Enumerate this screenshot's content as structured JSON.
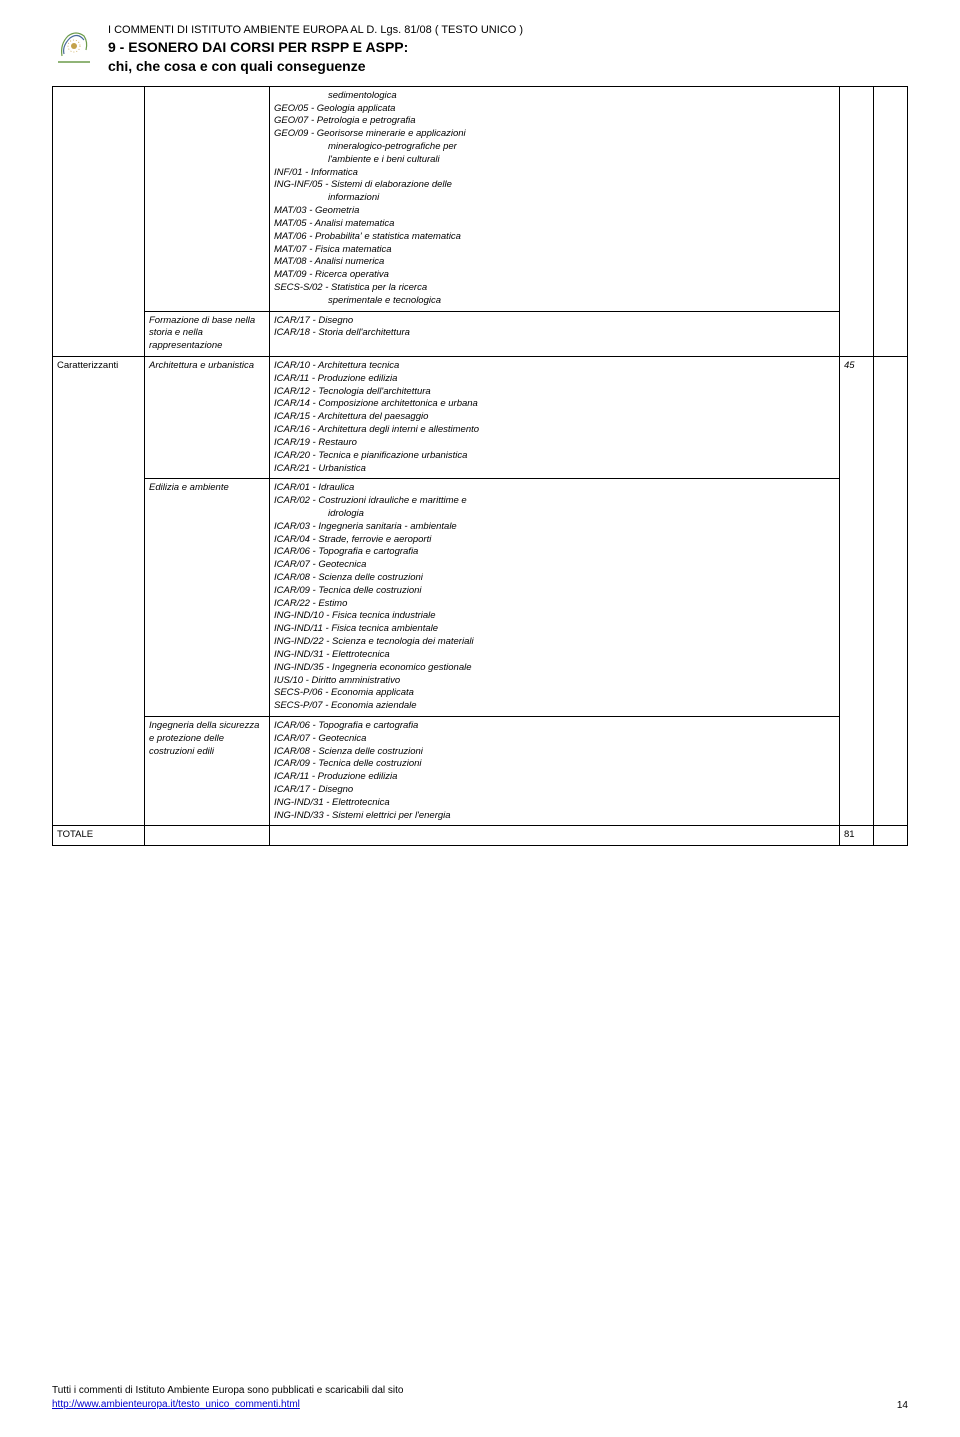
{
  "header": {
    "line1": "I COMMENTI DI ISTITUTO AMBIENTE EUROPA AL D. Lgs. 81/08 ( TESTO UNICO )",
    "line2": "9 - ESONERO DAI CORSI PER RSPP E ASPP:",
    "line3": "chi, che cosa e con quali conseguenze"
  },
  "rows": {
    "r1": {
      "col2": "",
      "col3_pre": "sedimentologica",
      "col3_lines": [
        "GEO/05 - Geologia applicata",
        "GEO/07 - Petrologia e petrografia",
        "GEO/09 - Georisorse minerarie e applicazioni"
      ],
      "col3_indent1": "mineralogico-petrografiche per",
      "col3_indent2": "l'ambiente e i beni culturali",
      "col3_lines_b": [
        "INF/01 - Informatica",
        "ING-INF/05 - Sistemi di elaborazione delle"
      ],
      "col3_indent3": "informazioni",
      "col3_lines_c": [
        "MAT/03 - Geometria",
        "MAT/05 - Analisi matematica",
        "MAT/06 - Probabilita' e statistica matematica",
        "MAT/07 - Fisica matematica",
        "MAT/08 - Analisi numerica",
        "MAT/09 - Ricerca operativa",
        "SECS-S/02 - Statistica per la ricerca"
      ],
      "col3_indent4": "sperimentale e tecnologica"
    },
    "r2": {
      "col2": "Formazione di base nella\nstoria e nella rappresentazione",
      "col3": "ICAR/17 - Disegno\nICAR/18 - Storia dell'architettura"
    },
    "r3": {
      "col1": "Caratterizzanti",
      "col2": "Architettura e urbanistica",
      "col3": "ICAR/10 - Architettura tecnica\nICAR/11 - Produzione edilizia\nICAR/12 - Tecnologia dell'architettura\nICAR/14 - Composizione architettonica e urbana\nICAR/15 - Architettura del paesaggio\nICAR/16 - Architettura degli interni e allestimento\nICAR/19 - Restauro\nICAR/20 - Tecnica e pianificazione urbanistica\nICAR/21 - Urbanistica",
      "col4": "45"
    },
    "r4": {
      "col2": "Edilizia e ambiente",
      "col3_a": "ICAR/01 - Idraulica\nICAR/02 - Costruzioni idrauliche e marittime e",
      "col3_indent": "idrologia",
      "col3_b": "ICAR/03 - Ingegneria sanitaria - ambientale\nICAR/04 - Strade, ferrovie e aeroporti\nICAR/06 - Topografia e cartografia\nICAR/07 - Geotecnica\nICAR/08 - Scienza delle costruzioni\nICAR/09 - Tecnica delle costruzioni\nICAR/22 - Estimo\nING-IND/10 - Fisica tecnica industriale\nING-IND/11 - Fisica tecnica ambientale\nING-IND/22 - Scienza e tecnologia dei materiali\nING-IND/31 - Elettrotecnica\nING-IND/35 - Ingegneria economico gestionale\nIUS/10 - Diritto amministrativo\nSECS-P/06 - Economia applicata\nSECS-P/07 - Economia aziendale"
    },
    "r5": {
      "col2": "Ingegneria della sicurezza e protezione delle costruzioni edili",
      "col3": "ICAR/06 - Topografia e cartografia\nICAR/07 - Geotecnica\nICAR/08 - Scienza delle costruzioni\nICAR/09 - Tecnica delle costruzioni\nICAR/11 - Produzione edilizia\nICAR/17 - Disegno\nING-IND/31 - Elettrotecnica\nING-IND/33 - Sistemi elettrici per l'energia"
    },
    "total": {
      "label": "TOTALE",
      "value": "81"
    }
  },
  "footer": {
    "text1": "Tutti i commenti di Istituto Ambiente Europa sono pubblicati e scaricabili dal sito",
    "link": "http://www.ambienteuropa.it/testo_unico_commenti.html",
    "page": "14"
  },
  "colors": {
    "logo_green": "#6b9b4a",
    "logo_blue": "#4a6b9b",
    "logo_gold": "#c4a24a"
  }
}
